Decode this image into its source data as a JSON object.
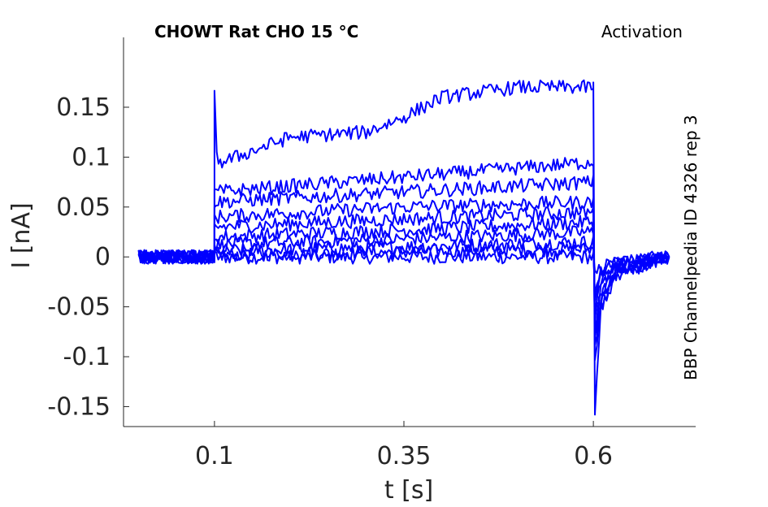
{
  "chart_data": {
    "type": "line",
    "title": "CHOWT  Rat  CHO  15 °C",
    "subtitle": "Activation",
    "side_label": "BBP Channelpedia ID 4326 rep 3",
    "xlabel": "t [s]",
    "ylabel": "I [nA]",
    "xlim": [
      -0.02,
      0.735
    ],
    "ylim": [
      -0.17,
      0.22
    ],
    "xticks": [
      0.1,
      0.35,
      0.6
    ],
    "xtick_labels": [
      "0.1",
      "0.35",
      "0.6"
    ],
    "yticks": [
      -0.15,
      -0.1,
      -0.05,
      0,
      0.05,
      0.1,
      0.15
    ],
    "ytick_labels": [
      "-0.15",
      "-0.1",
      "-0.05",
      "0",
      "0.05",
      "0.1",
      "0.15"
    ],
    "grid": false,
    "line_color": "#0000ff",
    "series": [
      {
        "x": [
          0.0,
          0.1,
          0.1,
          0.6,
          0.6,
          0.602,
          0.61,
          0.63,
          0.7
        ],
        "y": [
          0.0,
          0.0,
          0.0,
          0.0,
          0.0,
          -0.02,
          -0.01,
          -0.005,
          0.0
        ]
      },
      {
        "x": [
          0.0,
          0.1,
          0.1,
          0.35,
          0.6,
          0.6,
          0.602,
          0.61,
          0.63,
          0.7
        ],
        "y": [
          0.0,
          0.0,
          0.002,
          0.005,
          0.008,
          0.008,
          -0.03,
          -0.015,
          -0.005,
          0.0
        ]
      },
      {
        "x": [
          0.0,
          0.1,
          0.1,
          0.35,
          0.6,
          0.6,
          0.602,
          0.61,
          0.63,
          0.7
        ],
        "y": [
          0.0,
          0.0,
          0.006,
          0.01,
          0.015,
          0.015,
          -0.04,
          -0.02,
          -0.008,
          0.0
        ]
      },
      {
        "x": [
          0.0,
          0.1,
          0.1,
          0.35,
          0.6,
          0.6,
          0.602,
          0.61,
          0.63,
          0.7
        ],
        "y": [
          0.0,
          0.0,
          0.012,
          0.018,
          0.025,
          0.025,
          -0.05,
          -0.025,
          -0.01,
          0.0
        ]
      },
      {
        "x": [
          0.0,
          0.1,
          0.1,
          0.35,
          0.6,
          0.6,
          0.602,
          0.61,
          0.63,
          0.7
        ],
        "y": [
          0.0,
          0.0,
          0.02,
          0.027,
          0.035,
          0.035,
          -0.06,
          -0.03,
          -0.012,
          0.0
        ]
      },
      {
        "x": [
          0.0,
          0.1,
          0.1,
          0.35,
          0.6,
          0.6,
          0.602,
          0.61,
          0.63,
          0.7
        ],
        "y": [
          0.0,
          0.0,
          0.03,
          0.038,
          0.045,
          0.045,
          -0.07,
          -0.035,
          -0.012,
          0.0
        ]
      },
      {
        "x": [
          0.0,
          0.1,
          0.1,
          0.35,
          0.6,
          0.6,
          0.602,
          0.61,
          0.63,
          0.7
        ],
        "y": [
          0.0,
          0.0,
          0.04,
          0.05,
          0.055,
          0.055,
          -0.08,
          -0.04,
          -0.015,
          0.0
        ]
      },
      {
        "x": [
          0.0,
          0.1,
          0.1,
          0.35,
          0.6,
          0.6,
          0.602,
          0.61,
          0.63,
          0.7
        ],
        "y": [
          0.0,
          0.0,
          0.055,
          0.065,
          0.075,
          0.075,
          -0.09,
          -0.045,
          -0.015,
          0.0
        ]
      },
      {
        "x": [
          0.0,
          0.1,
          0.1,
          0.35,
          0.6,
          0.6,
          0.602,
          0.61,
          0.63,
          0.7
        ],
        "y": [
          0.0,
          0.0,
          0.065,
          0.08,
          0.095,
          0.095,
          -0.1,
          -0.05,
          -0.018,
          0.0
        ]
      },
      {
        "x": [
          0.0,
          0.1,
          0.1,
          0.103,
          0.11,
          0.2,
          0.3,
          0.35,
          0.4,
          0.5,
          0.6,
          0.6,
          0.602,
          0.61,
          0.63,
          0.7
        ],
        "y": [
          0.0,
          0.0,
          0.16,
          0.1,
          0.095,
          0.12,
          0.125,
          0.14,
          0.16,
          0.17,
          0.17,
          0.17,
          -0.16,
          -0.05,
          -0.02,
          0.0
        ]
      }
    ]
  }
}
